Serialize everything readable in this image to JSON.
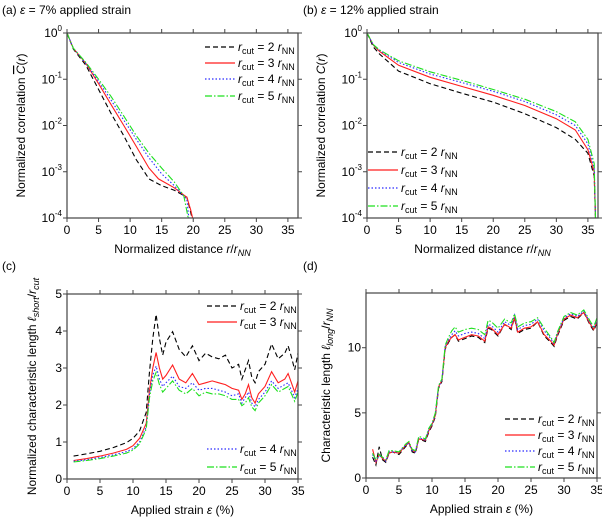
{
  "styles": {
    "rcut2": {
      "color": "#000000",
      "dash": "dashed"
    },
    "rcut3": {
      "color": "#ff1f1f",
      "dash": "solid"
    },
    "rcut4": {
      "color": "#2b2bff",
      "dash": "dotted"
    },
    "rcut5": {
      "color": "#1ee01e",
      "dash": "dashdot"
    }
  },
  "legend_labels": {
    "rcut2": [
      "r",
      "cut",
      " = 2 ",
      "r",
      "NN"
    ],
    "rcut3": [
      "r",
      "cut",
      " = 3 ",
      "r",
      "NN"
    ],
    "rcut4": [
      "r",
      "cut",
      " = 4 ",
      "r",
      "NN"
    ],
    "rcut5": [
      "r",
      "cut",
      " = 5 ",
      "r",
      "NN"
    ]
  },
  "chart_data": [
    {
      "panel": "(a)",
      "type": "line",
      "title": [
        {
          "t": "(a) "
        },
        {
          "t": "ε",
          "i": 1
        },
        {
          "t": " = 7% applied strain"
        }
      ],
      "xlabel": [
        {
          "t": "Normalized distance "
        },
        {
          "t": "r",
          "i": 1
        },
        {
          "t": "/"
        },
        {
          "t": "r",
          "i": 1
        },
        {
          "t": "NN",
          "i": 1,
          "sub": 1
        }
      ],
      "ylabel": [
        {
          "t": "Normalized correlation "
        },
        {
          "t": "C",
          "i": 1,
          "over": 1
        },
        {
          "t": "("
        },
        {
          "t": "r",
          "i": 1
        },
        {
          "t": ")"
        }
      ],
      "xlim": [
        0,
        36.6
      ],
      "ylim": [
        0.0001,
        1
      ],
      "yscale": "log",
      "xticks": [
        0,
        5,
        10,
        15,
        20,
        25,
        30,
        35
      ],
      "yticks": [
        {
          "v": 1,
          "base": "10",
          "exp": "0"
        },
        {
          "v": 0.1,
          "base": "10",
          "exp": "-1"
        },
        {
          "v": 0.01,
          "base": "10",
          "exp": "-2"
        },
        {
          "v": 0.001,
          "base": "10",
          "exp": "-3"
        },
        {
          "v": 0.0001,
          "base": "10",
          "exp": "-4"
        }
      ],
      "legend": "top-right",
      "series": [
        {
          "name": "rcut2",
          "x": [
            0,
            1,
            3,
            5,
            7,
            9,
            11,
            13,
            15,
            17,
            19,
            19.5,
            19.8
          ],
          "y": [
            1,
            0.45,
            0.2,
            0.06,
            0.018,
            0.006,
            0.0018,
            0.0007,
            0.0005,
            0.0004,
            0.00028,
            0.00015,
            0.0001
          ]
        },
        {
          "name": "rcut3",
          "x": [
            0,
            1,
            3,
            5,
            7,
            9,
            11,
            13,
            14.5,
            17,
            19,
            19.6,
            19.9
          ],
          "y": [
            1,
            0.47,
            0.22,
            0.08,
            0.028,
            0.01,
            0.0035,
            0.0012,
            0.0007,
            0.00045,
            0.00028,
            0.00015,
            0.0001
          ]
        },
        {
          "name": "rcut4",
          "x": [
            0,
            1,
            3,
            5,
            7,
            9,
            11,
            13,
            15,
            17,
            19,
            19.3
          ],
          "y": [
            1,
            0.47,
            0.22,
            0.09,
            0.035,
            0.013,
            0.005,
            0.002,
            0.0009,
            0.0005,
            0.00025,
            0.0001
          ]
        },
        {
          "name": "rcut5",
          "x": [
            0,
            1,
            3,
            5,
            7,
            9,
            11,
            13,
            15,
            17,
            18.5,
            19.2
          ],
          "y": [
            1,
            0.47,
            0.23,
            0.1,
            0.042,
            0.016,
            0.006,
            0.0025,
            0.0012,
            0.0006,
            0.0003,
            0.0001
          ]
        }
      ]
    },
    {
      "panel": "(b)",
      "type": "line",
      "title": [
        {
          "t": "(b) "
        },
        {
          "t": "ε",
          "i": 1
        },
        {
          "t": " = 12% applied strain"
        }
      ],
      "xlabel": [
        {
          "t": "Normalized distance "
        },
        {
          "t": "r",
          "i": 1
        },
        {
          "t": "/"
        },
        {
          "t": "r",
          "i": 1
        },
        {
          "t": "NN",
          "i": 1,
          "sub": 1
        }
      ],
      "ylabel": [
        {
          "t": "Normalized correlation "
        },
        {
          "t": "C",
          "i": 1
        },
        {
          "t": "("
        },
        {
          "t": "r",
          "i": 1
        },
        {
          "t": ")"
        }
      ],
      "xlim": [
        0,
        36.6
      ],
      "ylim": [
        0.0001,
        1
      ],
      "yscale": "log",
      "xticks": [
        0,
        5,
        10,
        15,
        20,
        25,
        30,
        35
      ],
      "yticks": [
        {
          "v": 1,
          "base": "10",
          "exp": "0"
        },
        {
          "v": 0.1,
          "base": "10",
          "exp": "-1"
        },
        {
          "v": 0.01,
          "base": "10",
          "exp": "-2"
        },
        {
          "v": 0.001,
          "base": "10",
          "exp": "-3"
        },
        {
          "v": 0.0001,
          "base": "10",
          "exp": "-4"
        }
      ],
      "legend": "bottom-left",
      "series": [
        {
          "name": "rcut2",
          "x": [
            0,
            1,
            2,
            5,
            10,
            15,
            20,
            25,
            30,
            33,
            35,
            36,
            36.2
          ],
          "y": [
            1,
            0.5,
            0.35,
            0.15,
            0.08,
            0.05,
            0.032,
            0.018,
            0.009,
            0.005,
            0.0025,
            0.0008,
            0.0001
          ]
        },
        {
          "name": "rcut3",
          "x": [
            0,
            1,
            2,
            5,
            10,
            15,
            20,
            25,
            30,
            33,
            35,
            36,
            36.2
          ],
          "y": [
            1,
            0.55,
            0.4,
            0.2,
            0.11,
            0.07,
            0.045,
            0.027,
            0.014,
            0.008,
            0.003,
            0.001,
            0.0001
          ]
        },
        {
          "name": "rcut4",
          "x": [
            0,
            1,
            2,
            5,
            10,
            15,
            20,
            25,
            30,
            33,
            35,
            36,
            36.2
          ],
          "y": [
            1,
            0.55,
            0.42,
            0.23,
            0.13,
            0.085,
            0.055,
            0.033,
            0.017,
            0.01,
            0.004,
            0.0012,
            0.0001
          ]
        },
        {
          "name": "rcut5",
          "x": [
            0,
            1,
            2,
            5,
            10,
            15,
            20,
            25,
            30,
            33,
            35,
            36,
            36.2
          ],
          "y": [
            1,
            0.56,
            0.43,
            0.25,
            0.145,
            0.095,
            0.06,
            0.037,
            0.02,
            0.012,
            0.005,
            0.0015,
            0.0001
          ]
        }
      ]
    },
    {
      "panel": "(c)",
      "type": "line",
      "title": [
        {
          "t": "(c)"
        }
      ],
      "xlabel": [
        {
          "t": "Applied strain "
        },
        {
          "t": "ε",
          "i": 1
        },
        {
          "t": " (%)"
        }
      ],
      "ylabel": [
        {
          "t": "Normalized characteristic length "
        },
        {
          "t": "ℓ",
          "i": 1
        },
        {
          "t": "short",
          "i": 1,
          "sub": 1
        },
        {
          "t": "/"
        },
        {
          "t": "r",
          "i": 1
        },
        {
          "t": "cut",
          "i": 1,
          "sub": 1
        }
      ],
      "xlim": [
        0,
        35
      ],
      "ylim": [
        0,
        5
      ],
      "yscale": "linear",
      "xticks": [
        0,
        5,
        10,
        15,
        20,
        25,
        30,
        35
      ],
      "yticks": [
        {
          "v": 0,
          "base": "0"
        },
        {
          "v": 1,
          "base": "1"
        },
        {
          "v": 2,
          "base": "2"
        },
        {
          "v": 3,
          "base": "3"
        },
        {
          "v": 4,
          "base": "4"
        },
        {
          "v": 5,
          "base": "5"
        }
      ],
      "legend": "split top-right / bottom-right",
      "x_shared": [
        1,
        3,
        5,
        7,
        9,
        10,
        11,
        12,
        12.5,
        13,
        13.5,
        14,
        14.5,
        15,
        16,
        17,
        18,
        19,
        20,
        21,
        22,
        23,
        24,
        25,
        26,
        26.5,
        27,
        27.5,
        28,
        28.5,
        29,
        30,
        31,
        32,
        33,
        33.5,
        34,
        34.5,
        35
      ],
      "series": [
        {
          "name": "rcut2",
          "y": [
            0.62,
            0.68,
            0.75,
            0.85,
            0.98,
            1.1,
            1.3,
            1.8,
            2.9,
            3.8,
            4.45,
            3.8,
            3.35,
            3.7,
            3.98,
            3.5,
            3.3,
            3.6,
            3.2,
            3.4,
            3.3,
            3.25,
            3.35,
            3.0,
            3.1,
            2.7,
            2.95,
            3.2,
            2.75,
            2.6,
            2.9,
            3.1,
            3.65,
            3.25,
            3.4,
            3.6,
            3.3,
            2.95,
            3.4
          ]
        },
        {
          "name": "rcut3",
          "y": [
            0.5,
            0.55,
            0.62,
            0.7,
            0.8,
            0.9,
            1.1,
            1.5,
            2.4,
            3.0,
            3.42,
            3.0,
            2.7,
            2.8,
            3.08,
            2.7,
            2.6,
            2.85,
            2.55,
            2.6,
            2.65,
            2.6,
            2.55,
            2.45,
            2.4,
            2.15,
            2.3,
            2.55,
            2.2,
            2.05,
            2.3,
            2.5,
            2.9,
            2.6,
            2.7,
            2.85,
            2.6,
            2.35,
            2.65
          ]
        },
        {
          "name": "rcut4",
          "y": [
            0.48,
            0.52,
            0.58,
            0.65,
            0.74,
            0.82,
            1.0,
            1.4,
            2.3,
            2.8,
            3.05,
            2.7,
            2.5,
            2.6,
            2.78,
            2.5,
            2.45,
            2.6,
            2.4,
            2.45,
            2.45,
            2.4,
            2.35,
            2.25,
            2.3,
            2.05,
            2.2,
            2.35,
            2.05,
            1.95,
            2.15,
            2.35,
            2.65,
            2.45,
            2.55,
            2.6,
            2.4,
            2.2,
            2.45
          ]
        },
        {
          "name": "rcut5",
          "y": [
            0.46,
            0.5,
            0.55,
            0.62,
            0.7,
            0.78,
            0.95,
            1.35,
            2.2,
            2.65,
            2.88,
            2.55,
            2.35,
            2.45,
            2.65,
            2.4,
            2.3,
            2.45,
            2.25,
            2.35,
            2.3,
            2.3,
            2.25,
            2.15,
            2.15,
            1.98,
            2.05,
            2.2,
            1.95,
            1.85,
            2.05,
            2.25,
            2.55,
            2.35,
            2.45,
            2.5,
            2.3,
            2.1,
            2.35
          ]
        }
      ]
    },
    {
      "panel": "(d)",
      "type": "line",
      "title": [
        {
          "t": "(d)"
        }
      ],
      "xlabel": [
        {
          "t": "Applied strain "
        },
        {
          "t": "ε",
          "i": 1
        },
        {
          "t": " (%)"
        }
      ],
      "ylabel": [
        {
          "t": "Characteristic length "
        },
        {
          "t": "ℓ",
          "i": 1
        },
        {
          "t": "long",
          "i": 1,
          "sub": 1
        },
        {
          "t": "/"
        },
        {
          "t": "r",
          "i": 1
        },
        {
          "t": "NN",
          "i": 1,
          "sub": 1
        }
      ],
      "xlim": [
        0,
        35
      ],
      "ylim": [
        0,
        14.2
      ],
      "yscale": "linear",
      "xticks": [
        0,
        5,
        10,
        15,
        20,
        25,
        30,
        35
      ],
      "yticks": [
        {
          "v": 0,
          "base": "0"
        },
        {
          "v": 5,
          "base": "5"
        },
        {
          "v": 10,
          "base": "10"
        }
      ],
      "legend": "bottom-right",
      "x_shared": [
        1,
        1.5,
        2,
        2.5,
        3,
        3.5,
        4,
        5,
        6,
        6.5,
        7,
        7.5,
        8,
        9,
        9.5,
        10,
        10.5,
        11,
        11.5,
        12,
        12.5,
        13,
        13.5,
        14,
        15,
        16,
        17,
        18,
        18.5,
        19,
        20,
        21,
        22,
        22.5,
        23,
        24,
        25,
        26,
        27,
        28,
        28.5,
        29,
        30,
        31,
        32,
        33,
        34,
        34.5,
        35
      ],
      "series": [
        {
          "name": "rcut2",
          "y": [
            1.6,
            1.0,
            2.4,
            1.4,
            1.2,
            1.9,
            2.0,
            1.8,
            2.4,
            2.7,
            2.0,
            1.9,
            3.0,
            2.8,
            3.5,
            4.0,
            4.7,
            6.9,
            7.4,
            9.9,
            10.4,
            10.8,
            11.0,
            10.5,
            10.7,
            10.9,
            10.8,
            10.4,
            11.5,
            11.4,
            10.9,
            11.8,
            11.4,
            12.3,
            11.1,
            11.4,
            11.5,
            12.0,
            10.9,
            10.4,
            10.1,
            10.9,
            12.1,
            12.4,
            12.2,
            12.7,
            11.7,
            11.3,
            11.9
          ]
        },
        {
          "name": "rcut3",
          "y": [
            2.2,
            1.2,
            1.8,
            1.5,
            1.3,
            1.9,
            2.0,
            1.9,
            2.5,
            2.7,
            2.1,
            2.0,
            3.0,
            2.9,
            3.6,
            4.1,
            4.8,
            7.0,
            7.5,
            10.0,
            10.5,
            10.8,
            11.0,
            10.6,
            10.8,
            11.0,
            10.9,
            10.5,
            11.6,
            11.5,
            11.0,
            11.8,
            11.5,
            12.3,
            11.2,
            11.5,
            11.6,
            12.0,
            11.0,
            10.5,
            10.2,
            11.0,
            12.2,
            12.5,
            12.3,
            12.7,
            11.8,
            11.4,
            12.0
          ]
        },
        {
          "name": "rcut4",
          "y": [
            1.8,
            1.3,
            1.7,
            1.6,
            1.3,
            2.0,
            2.0,
            2.0,
            2.5,
            2.7,
            2.1,
            2.0,
            3.1,
            2.9,
            3.7,
            4.1,
            4.9,
            7.0,
            7.5,
            10.1,
            10.6,
            11.0,
            11.3,
            10.9,
            11.1,
            11.2,
            11.1,
            10.7,
            11.8,
            11.7,
            11.2,
            12.0,
            11.7,
            12.5,
            11.4,
            11.7,
            11.8,
            12.2,
            11.3,
            10.7,
            10.3,
            11.1,
            12.3,
            12.6,
            12.4,
            12.8,
            11.9,
            11.5,
            12.1
          ]
        },
        {
          "name": "rcut5",
          "y": [
            1.9,
            1.4,
            1.8,
            1.6,
            1.4,
            2.1,
            2.1,
            2.0,
            2.6,
            2.8,
            2.2,
            2.1,
            3.2,
            3.0,
            3.8,
            4.2,
            5.0,
            7.1,
            7.6,
            10.2,
            10.8,
            11.3,
            11.6,
            11.2,
            11.4,
            11.5,
            11.4,
            11.0,
            12.1,
            12.0,
            11.5,
            12.2,
            11.9,
            12.6,
            11.6,
            11.9,
            12.0,
            12.3,
            11.5,
            10.8,
            10.4,
            11.2,
            12.4,
            12.7,
            12.5,
            12.9,
            12.0,
            11.6,
            12.3
          ]
        }
      ]
    }
  ]
}
